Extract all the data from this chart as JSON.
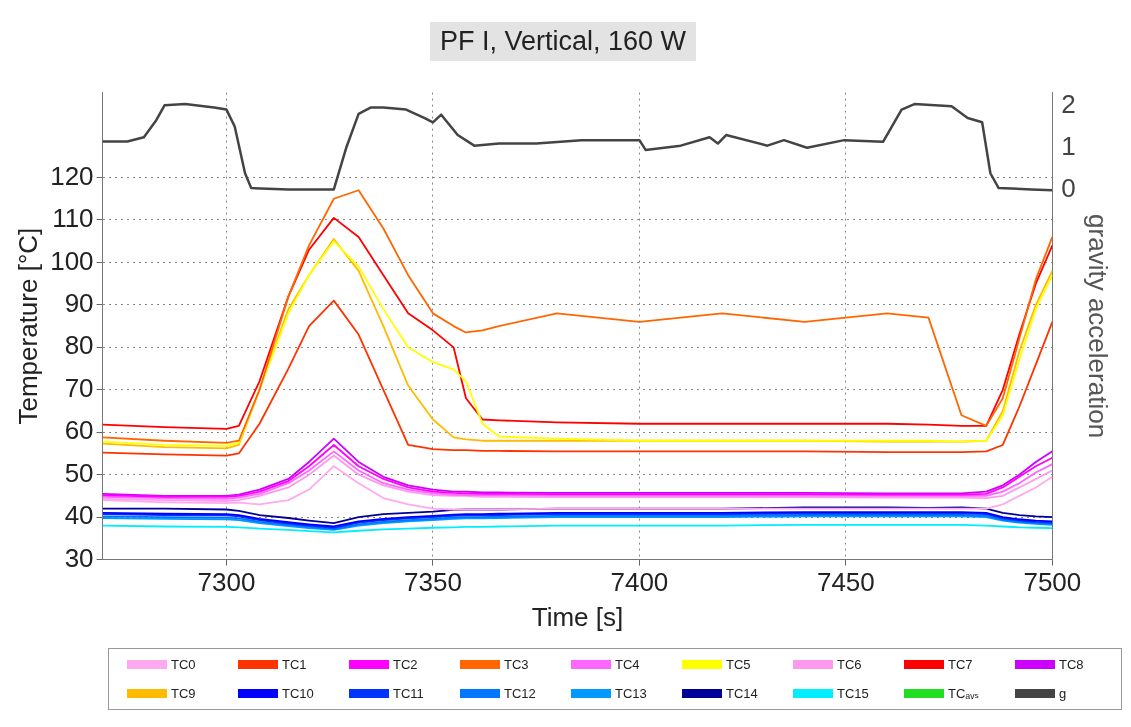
{
  "chart_data": {
    "type": "line",
    "title": "PF I, Vertical, 160 W",
    "xlabel": "Time [s]",
    "ylabel": "Temperature [°C]",
    "y2label": "gravity acceleration",
    "x": [
      7270,
      7285,
      7300,
      7303,
      7308,
      7315,
      7320,
      7326,
      7332,
      7338,
      7344,
      7350,
      7355,
      7358,
      7362,
      7366,
      7380,
      7400,
      7420,
      7440,
      7460,
      7470,
      7478,
      7484,
      7488,
      7492,
      7496,
      7500
    ],
    "xlim": [
      7270,
      7500
    ],
    "xticks": [
      7300,
      7350,
      7400,
      7450,
      7500
    ],
    "ylim": [
      30,
      140
    ],
    "yticks": [
      30,
      40,
      50,
      60,
      70,
      80,
      90,
      100,
      110,
      120
    ],
    "y2lim": [
      -8.7,
      2.3
    ],
    "y2ticks": [
      0,
      1,
      2
    ],
    "grid": true,
    "legend": "bottom",
    "marker": "none",
    "line_style": "solid",
    "series": [
      {
        "name": "TC0",
        "color": "#ffaaee",
        "values": [
          44,
          43.5,
          43.3,
          43.4,
          43,
          44,
          46.5,
          52,
          48,
          44.5,
          43,
          42,
          41.8,
          41.8,
          41.8,
          41.8,
          42,
          42,
          42,
          42,
          42,
          42,
          42,
          42,
          43,
          45,
          47,
          49.5
        ]
      },
      {
        "name": "TC1",
        "color": "#ff3300",
        "values": [
          55.2,
          54.8,
          54.5,
          55,
          62,
          75,
          85,
          91,
          83,
          70,
          57,
          56,
          55.8,
          55.8,
          55.6,
          55.6,
          55.5,
          55.5,
          55.5,
          55.5,
          55.3,
          55.3,
          55.3,
          55.5,
          57,
          66,
          76,
          86
        ]
      },
      {
        "name": "TC2",
        "color": "#ff00ff",
        "values": [
          45.2,
          44.8,
          44.8,
          45,
          46,
          48.5,
          52,
          57,
          52,
          49,
          47,
          46,
          45.7,
          45.6,
          45.5,
          45.5,
          45.4,
          45.4,
          45.4,
          45.4,
          45.3,
          45.3,
          45.3,
          45.5,
          47,
          49.5,
          52,
          54
        ]
      },
      {
        "name": "TC3",
        "color": "#ff6600",
        "values": [
          58.8,
          58,
          57.5,
          58,
          70,
          92,
          104,
          115,
          117,
          108,
          97,
          88,
          85,
          83.5,
          84,
          85,
          88,
          86,
          88,
          86,
          88,
          87,
          64,
          61.5,
          68,
          82,
          96,
          106
        ]
      },
      {
        "name": "TC4",
        "color": "#ff66ff",
        "values": [
          44.8,
          44.5,
          44.3,
          44.6,
          45.5,
          48,
          51,
          55.5,
          51,
          48,
          46.5,
          45.6,
          45.3,
          45.2,
          45.2,
          45.2,
          45.1,
          45.1,
          45.1,
          45.1,
          45,
          45,
          45,
          45,
          46,
          48,
          50.5,
          52.5
        ]
      },
      {
        "name": "TC5",
        "color": "#ffff00",
        "values": [
          57.8,
          57,
          56.8,
          57.5,
          70,
          88,
          97,
          105,
          99,
          89,
          80,
          76.5,
          74.8,
          72,
          62,
          59,
          58.5,
          58,
          58,
          58,
          58,
          58,
          57.8,
          58,
          64,
          77,
          89,
          97
        ]
      },
      {
        "name": "TC6",
        "color": "#ff99ee",
        "values": [
          44.3,
          44,
          43.8,
          44,
          45,
          47,
          50,
          54.5,
          50,
          47.5,
          46,
          45.2,
          45,
          45,
          44.8,
          44.8,
          44.7,
          44.7,
          44.7,
          44.7,
          44.6,
          44.6,
          44.6,
          44.5,
          45,
          47,
          49,
          51
        ]
      },
      {
        "name": "TC7",
        "color": "#ff0000",
        "values": [
          61.8,
          61.2,
          60.8,
          61.5,
          72,
          92,
          103,
          110.5,
          106,
          97,
          88,
          84,
          80,
          68,
          63,
          62.8,
          62.3,
          62,
          62,
          62,
          62,
          61.8,
          61.5,
          61.5,
          70,
          83,
          95,
          104
        ]
      },
      {
        "name": "TC8",
        "color": "#cc00ff",
        "values": [
          45.5,
          45,
          45,
          45.3,
          46.5,
          49,
          53,
          58.5,
          53,
          49.5,
          47.5,
          46.5,
          46,
          46,
          45.8,
          45.8,
          45.7,
          45.7,
          45.7,
          45.7,
          45.6,
          45.6,
          45.6,
          46,
          47.5,
          50,
          53,
          55.5
        ]
      },
      {
        "name": "TC9",
        "color": "#ffbb00",
        "values": [
          57.3,
          56.5,
          56.2,
          57,
          70,
          89,
          97,
          105.5,
          98,
          85,
          71,
          63,
          58.8,
          58.3,
          58,
          58,
          58,
          58,
          58,
          58,
          57.8,
          57.8,
          57.8,
          58,
          65,
          79,
          90,
          98
        ]
      },
      {
        "name": "TC10",
        "color": "#0000ff",
        "values": [
          41,
          40.8,
          40.7,
          40.5,
          39.6,
          38.8,
          38.3,
          37.8,
          39,
          39.6,
          40,
          40.3,
          40.6,
          40.7,
          40.7,
          40.8,
          41,
          41,
          41,
          41.2,
          41.2,
          41.2,
          41.2,
          41,
          40,
          39.5,
          39.2,
          39
        ]
      },
      {
        "name": "TC11",
        "color": "#0033ff",
        "values": [
          40.7,
          40.5,
          40.4,
          40.2,
          39.3,
          38.5,
          38,
          37.5,
          38.7,
          39.3,
          39.7,
          40,
          40.3,
          40.4,
          40.4,
          40.5,
          40.7,
          40.7,
          40.7,
          40.9,
          40.9,
          40.9,
          40.9,
          40.7,
          39.7,
          39.2,
          38.9,
          38.7
        ]
      },
      {
        "name": "TC12",
        "color": "#0077ff",
        "values": [
          40.2,
          40,
          39.9,
          39.7,
          38.9,
          38.2,
          37.7,
          37.2,
          38.3,
          38.9,
          39.3,
          39.6,
          39.9,
          40,
          40,
          40.1,
          40.3,
          40.3,
          40.3,
          40.5,
          40.5,
          40.5,
          40.5,
          40.3,
          39.4,
          38.9,
          38.6,
          38.4
        ]
      },
      {
        "name": "TC13",
        "color": "#0099ff",
        "values": [
          39.8,
          39.6,
          39.5,
          39.3,
          38.6,
          37.9,
          37.4,
          37,
          38,
          38.6,
          39,
          39.3,
          39.6,
          39.7,
          39.7,
          39.8,
          40,
          40,
          40,
          40.2,
          40.2,
          40.2,
          40.2,
          40,
          39.2,
          38.7,
          38.4,
          38.2
        ]
      },
      {
        "name": "TC14",
        "color": "#000099",
        "values": [
          42,
          42,
          41.8,
          41.5,
          40.5,
          39.8,
          39.2,
          38.6,
          40,
          40.7,
          41,
          41.3,
          41.7,
          41.8,
          41.8,
          41.8,
          42,
          42,
          42,
          42.3,
          42.3,
          42.2,
          42.3,
          42,
          41,
          40.5,
          40.2,
          40
        ]
      },
      {
        "name": "TC15",
        "color": "#00eeff",
        "values": [
          38,
          37.8,
          37.7,
          37.6,
          37.3,
          37,
          36.7,
          36.4,
          36.8,
          37.1,
          37.3,
          37.5,
          37.6,
          37.7,
          37.7,
          37.8,
          38,
          38,
          38,
          38.2,
          38.2,
          38.2,
          38.2,
          38,
          37.8,
          37.6,
          37.5,
          37.4
        ]
      },
      {
        "name": "TCₐᵥₛ",
        "color": "#22dd22",
        "values": [
          null,
          null,
          null,
          null,
          null,
          null,
          null,
          null,
          null,
          null,
          null,
          null,
          null,
          null,
          null,
          null,
          null,
          null,
          null,
          null,
          null,
          null,
          null,
          null,
          null,
          null,
          null,
          null
        ]
      },
      {
        "name": "g",
        "color": "#444444",
        "axis": "y2",
        "x": [
          7270,
          7276,
          7280,
          7283,
          7285,
          7290,
          7297,
          7300,
          7302,
          7304.5,
          7306,
          7315,
          7326,
          7329,
          7332,
          7335,
          7338,
          7343.5,
          7348,
          7350,
          7352,
          7356,
          7360,
          7366,
          7375,
          7386,
          7400,
          7401.5,
          7410,
          7417,
          7419,
          7421,
          7431,
          7435,
          7440.6,
          7449.6,
          7459,
          7463.5,
          7466.6,
          7475.6,
          7479.5,
          7483,
          7485,
          7487,
          7495,
          7500
        ],
        "values": [
          1.15,
          1.15,
          1.25,
          1.65,
          2.0,
          2.03,
          1.95,
          1.9,
          1.5,
          0.4,
          0.05,
          0.02,
          0.02,
          1.0,
          1.8,
          1.95,
          1.95,
          1.9,
          1.7,
          1.6,
          1.78,
          1.3,
          1.05,
          1.1,
          1.1,
          1.18,
          1.18,
          0.95,
          1.05,
          1.25,
          1.1,
          1.3,
          1.05,
          1.18,
          1.0,
          1.18,
          1.14,
          1.9,
          2.03,
          1.98,
          1.7,
          1.6,
          0.4,
          0.05,
          0.02,
          0.0
        ]
      }
    ]
  }
}
